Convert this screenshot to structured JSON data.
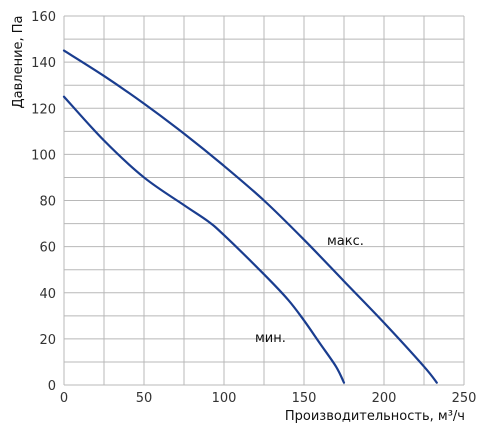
{
  "chart_data": {
    "type": "line",
    "title": "",
    "xlabel": "Производительность, м³/ч",
    "ylabel": "Давление, Па",
    "xlim": [
      0,
      250
    ],
    "ylim": [
      0,
      160
    ],
    "x_ticks": [
      0,
      50,
      100,
      150,
      200,
      250
    ],
    "y_ticks": [
      0,
      20,
      40,
      60,
      80,
      100,
      120,
      140,
      160
    ],
    "x_grid_step": 25,
    "y_grid_step": 10,
    "grid": true,
    "line_color": "#1a3d8f",
    "series": [
      {
        "name": "макс.",
        "x": [
          0,
          25,
          50,
          75,
          100,
          125,
          150,
          175,
          200,
          225,
          233
        ],
        "y": [
          145,
          134,
          122,
          109,
          95,
          80,
          63,
          45,
          27,
          8,
          1
        ]
      },
      {
        "name": "мин.",
        "x": [
          0,
          25,
          50,
          75,
          90,
          100,
          125,
          140,
          150,
          160,
          170,
          175
        ],
        "y": [
          125,
          106,
          90,
          78,
          71,
          65,
          48,
          37,
          28,
          18,
          8,
          1
        ]
      }
    ]
  }
}
